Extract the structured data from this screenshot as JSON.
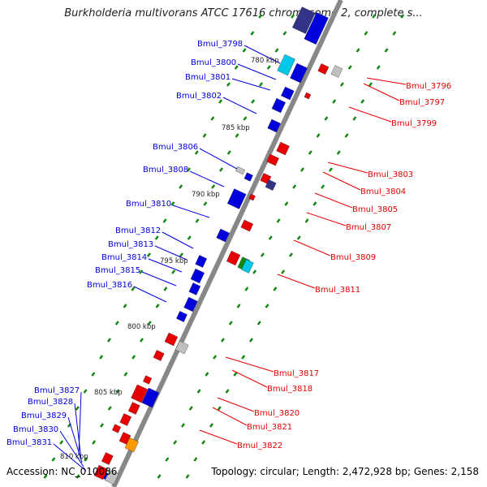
{
  "title": "Burkholderia multivorans ATCC 17616 chromosome 2, complete s...",
  "footer": {
    "accession": "Accession: NC_010086",
    "topology": "Topology: circular; Length: 2,472,928 bp; Genes: 2,158"
  },
  "colors": {
    "backbone": "#888888",
    "forward": "#0000dd",
    "reverse": "#e60000",
    "tick": "#118811",
    "other_gray": "#c0c0c0",
    "cyan": "#00c8e6",
    "orange": "#ff9900",
    "navy": "#333388"
  },
  "scale_labels": [
    "780 kbp",
    "785 kbp",
    "790 kbp",
    "795 kbp",
    "800 kbp",
    "805 kbp",
    "810 kbp"
  ],
  "left_labels": [
    "Bmul_3798",
    "Bmul_3800",
    "Bmul_3801",
    "Bmul_3802",
    "Bmul_3806",
    "Bmul_3808",
    "Bmul_3810",
    "Bmul_3812",
    "Bmul_3813",
    "Bmul_3814",
    "Bmul_3815",
    "Bmul_3816",
    "Bmul_3827",
    "Bmul_3828",
    "Bmul_3829",
    "Bmul_3830",
    "Bmul_3831"
  ],
  "right_labels": [
    "Bmul_3796",
    "Bmul_3797",
    "Bmul_3799",
    "Bmul_3803",
    "Bmul_3804",
    "Bmul_3805",
    "Bmul_3807",
    "Bmul_3809",
    "Bmul_3811",
    "Bmul_3817",
    "Bmul_3818",
    "Bmul_3820",
    "Bmul_3821",
    "Bmul_3822"
  ]
}
